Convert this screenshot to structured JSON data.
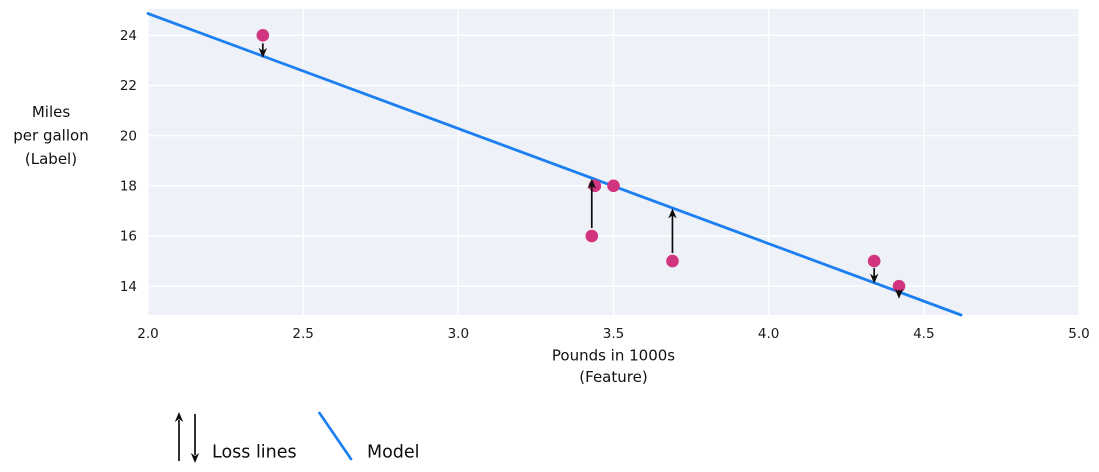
{
  "figure": {
    "legend": {
      "loss_label": "Loss lines",
      "model_label": "Model"
    }
  },
  "chart_data": {
    "type": "scatter",
    "title": "",
    "xlabel_lines": [
      "Pounds in 1000s",
      "(Feature)"
    ],
    "ylabel_lines": [
      "Miles",
      "per gallon",
      "(Label)"
    ],
    "xlim": [
      2.0,
      5.0
    ],
    "ylim": [
      12.85,
      25.05
    ],
    "xticks": [
      2.0,
      2.5,
      3.0,
      3.5,
      4.0,
      4.5,
      5.0
    ],
    "xtick_labels": [
      "2.0",
      "2.5",
      "3.0",
      "3.5",
      "4.0",
      "4.5",
      "5.0"
    ],
    "yticks": [
      14,
      16,
      18,
      20,
      22,
      24
    ],
    "ytick_labels": [
      "14",
      "16",
      "18",
      "20",
      "22",
      "24"
    ],
    "grid": true,
    "legend_position": "below-left",
    "points": [
      {
        "x": 2.37,
        "y": 24
      },
      {
        "x": 3.43,
        "y": 16
      },
      {
        "x": 3.44,
        "y": 18
      },
      {
        "x": 3.5,
        "y": 18
      },
      {
        "x": 3.69,
        "y": 15
      },
      {
        "x": 4.34,
        "y": 15
      },
      {
        "x": 4.42,
        "y": 14
      }
    ],
    "model_line": {
      "x1": 2.0,
      "y1": 24.87,
      "x2": 4.62,
      "y2": 12.85
    },
    "loss_arrows": [
      {
        "x": 2.37,
        "from": 23.68,
        "to": 23.1,
        "dir": "down"
      },
      {
        "x": 3.43,
        "from": 16.32,
        "to": 18.28,
        "dir": "up"
      },
      {
        "x": 3.69,
        "from": 15.32,
        "to": 17.1,
        "dir": "up"
      },
      {
        "x": 4.34,
        "from": 14.72,
        "to": 14.1,
        "dir": "down"
      },
      {
        "x": 4.42,
        "from": 13.85,
        "to": 13.5,
        "dir": "down"
      }
    ],
    "colors": {
      "model_line": "#1b7ff2",
      "points": "#d2357f",
      "loss_arrows": "#0d0d0d",
      "plot_bg": "#eef1f7",
      "grid": "#ffffff",
      "text": "#1a1a1a"
    }
  }
}
